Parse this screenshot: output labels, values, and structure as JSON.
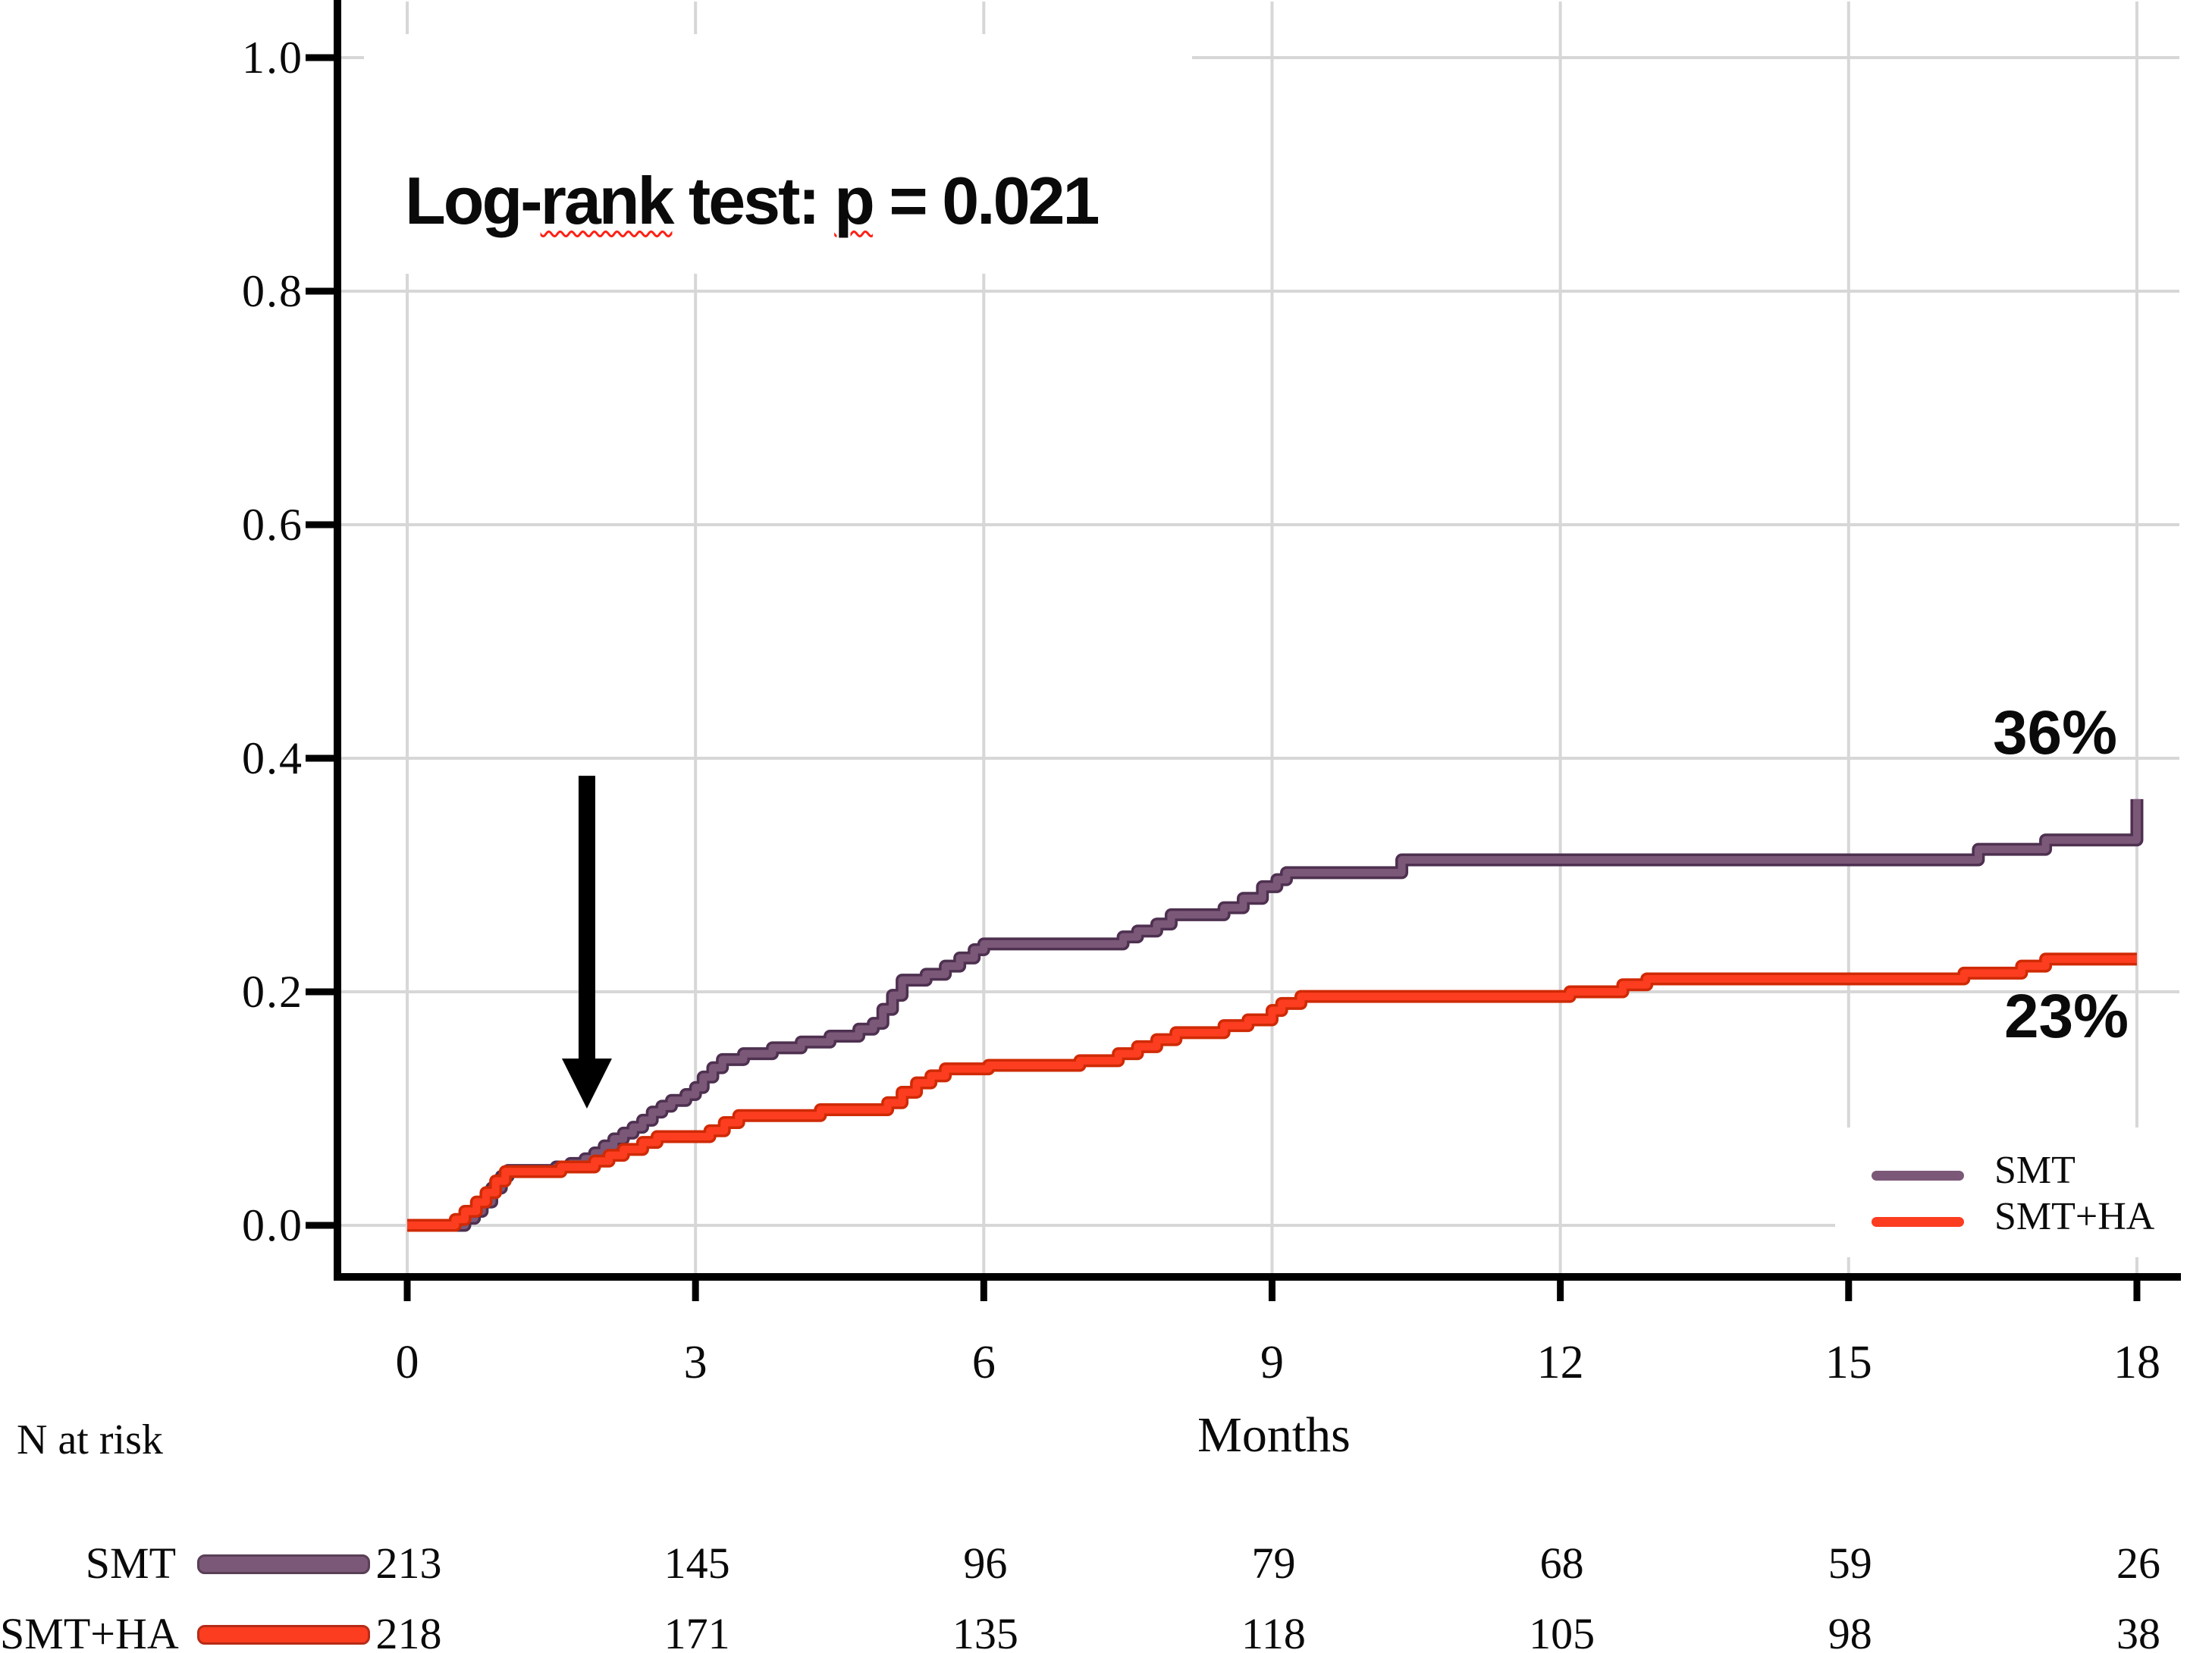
{
  "chart_data": {
    "type": "line",
    "subtype": "kaplan-meier-cumulative-incidence-step-curves",
    "title": "",
    "xlabel": "Months",
    "ylabel": "",
    "xlim": [
      0,
      18
    ],
    "ylim": [
      0.0,
      1.0
    ],
    "x_ticks": [
      "0",
      "3",
      "6",
      "9",
      "12",
      "15",
      "18"
    ],
    "y_ticks": [
      "1.0",
      "0.8",
      "0.6",
      "0.4",
      "0.2",
      "0.0"
    ],
    "grid": true,
    "legend_position": "lower-right",
    "annotation": {
      "full_text": "Log-rank test: p = 0.021",
      "segments": [
        {
          "text": "Log-",
          "wavy": false
        },
        {
          "text": "rank",
          "wavy": true
        },
        {
          "text": " test: ",
          "wavy": false
        },
        {
          "text": "p",
          "wavy": true
        },
        {
          "text": " = 0.021",
          "wavy": false
        }
      ]
    },
    "colors": {
      "smt": "#7b5878",
      "smt_outline": "#4e3050",
      "smt_ha": "#fc3d20",
      "smt_ha_outline": "#cf2a05",
      "grid": "#d7d7d7",
      "axis": "#000000",
      "arrow": "#000000",
      "wavy_underline": "#ff1f14"
    },
    "series": [
      {
        "name": "SMT",
        "end_label": "36%",
        "final_value": 0.365,
        "steps": [
          [
            0.6,
            0.006
          ],
          [
            0.7,
            0.012
          ],
          [
            0.78,
            0.02
          ],
          [
            0.88,
            0.032
          ],
          [
            0.98,
            0.042
          ],
          [
            1.05,
            0.047
          ],
          [
            1.55,
            0.05
          ],
          [
            1.7,
            0.053
          ],
          [
            1.85,
            0.057
          ],
          [
            1.95,
            0.062
          ],
          [
            2.05,
            0.068
          ],
          [
            2.15,
            0.074
          ],
          [
            2.25,
            0.079
          ],
          [
            2.35,
            0.084
          ],
          [
            2.45,
            0.09
          ],
          [
            2.55,
            0.097
          ],
          [
            2.65,
            0.102
          ],
          [
            2.75,
            0.107
          ],
          [
            2.9,
            0.112
          ],
          [
            3.0,
            0.118
          ],
          [
            3.08,
            0.127
          ],
          [
            3.18,
            0.135
          ],
          [
            3.28,
            0.142
          ],
          [
            3.5,
            0.147
          ],
          [
            3.8,
            0.152
          ],
          [
            4.1,
            0.157
          ],
          [
            4.4,
            0.162
          ],
          [
            4.7,
            0.168
          ],
          [
            4.85,
            0.173
          ],
          [
            4.95,
            0.185
          ],
          [
            5.05,
            0.197
          ],
          [
            5.15,
            0.21
          ],
          [
            5.4,
            0.215
          ],
          [
            5.6,
            0.222
          ],
          [
            5.75,
            0.229
          ],
          [
            5.9,
            0.236
          ],
          [
            6.0,
            0.241
          ],
          [
            7.45,
            0.247
          ],
          [
            7.6,
            0.252
          ],
          [
            7.8,
            0.258
          ],
          [
            7.95,
            0.266
          ],
          [
            8.5,
            0.272
          ],
          [
            8.7,
            0.28
          ],
          [
            8.9,
            0.29
          ],
          [
            9.05,
            0.296
          ],
          [
            9.15,
            0.302
          ],
          [
            10.35,
            0.313
          ],
          [
            16.35,
            0.322
          ],
          [
            17.05,
            0.33
          ],
          [
            18.0,
            0.365
          ]
        ]
      },
      {
        "name": "SMT+HA",
        "end_label": "23%",
        "final_value": 0.228,
        "steps": [
          [
            0.5,
            0.005
          ],
          [
            0.6,
            0.012
          ],
          [
            0.72,
            0.02
          ],
          [
            0.82,
            0.028
          ],
          [
            0.92,
            0.038
          ],
          [
            1.02,
            0.046
          ],
          [
            1.6,
            0.05
          ],
          [
            1.95,
            0.055
          ],
          [
            2.1,
            0.06
          ],
          [
            2.25,
            0.065
          ],
          [
            2.45,
            0.071
          ],
          [
            2.6,
            0.076
          ],
          [
            3.15,
            0.081
          ],
          [
            3.3,
            0.088
          ],
          [
            3.45,
            0.094
          ],
          [
            4.3,
            0.099
          ],
          [
            5.0,
            0.105
          ],
          [
            5.15,
            0.114
          ],
          [
            5.3,
            0.122
          ],
          [
            5.45,
            0.128
          ],
          [
            5.6,
            0.134
          ],
          [
            6.05,
            0.137
          ],
          [
            7.0,
            0.141
          ],
          [
            7.4,
            0.147
          ],
          [
            7.6,
            0.153
          ],
          [
            7.8,
            0.159
          ],
          [
            8.0,
            0.165
          ],
          [
            8.5,
            0.171
          ],
          [
            8.75,
            0.176
          ],
          [
            9.0,
            0.184
          ],
          [
            9.1,
            0.19
          ],
          [
            9.3,
            0.196
          ],
          [
            12.1,
            0.2
          ],
          [
            12.65,
            0.206
          ],
          [
            12.9,
            0.211
          ],
          [
            16.2,
            0.216
          ],
          [
            16.8,
            0.222
          ],
          [
            17.05,
            0.228
          ]
        ]
      }
    ],
    "arrow_annotation": {
      "x_month": 1.87,
      "tip_value": 0.1,
      "tail_value": 0.385
    },
    "legend": {
      "entries": [
        "SMT",
        "SMT+HA"
      ]
    },
    "risk_table": {
      "title": "N at risk",
      "columns": [
        "0",
        "3",
        "6",
        "9",
        "12",
        "15",
        "18"
      ],
      "rows": [
        {
          "label": "SMT",
          "values": [
            "213",
            "145",
            "96",
            "79",
            "68",
            "59",
            "26"
          ]
        },
        {
          "label": "SMT+HA",
          "values": [
            "218",
            "171",
            "135",
            "118",
            "105",
            "98",
            "38"
          ]
        }
      ]
    }
  }
}
